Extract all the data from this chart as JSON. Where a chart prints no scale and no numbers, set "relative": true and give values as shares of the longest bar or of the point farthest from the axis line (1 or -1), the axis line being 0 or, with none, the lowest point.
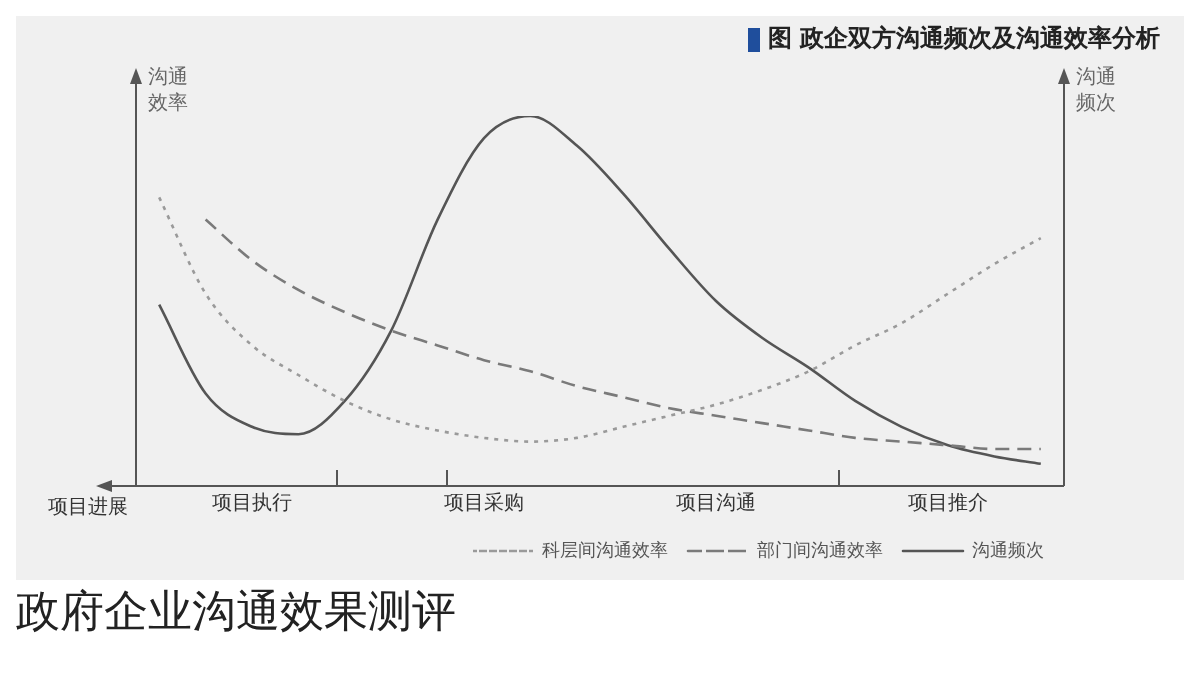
{
  "chart_data": {
    "type": "line",
    "title": "图 政企双方沟通频次及沟通效率分析",
    "xlabel": "项目进展",
    "ylabel": "沟通效率",
    "y2label": "沟通频次",
    "relative": true,
    "categories": [
      null,
      null,
      "项目执行",
      null,
      null,
      null,
      null,
      "项目采购",
      null,
      null,
      null,
      null,
      "项目沟通",
      null,
      null,
      null,
      null,
      "项目推介",
      null,
      null
    ],
    "series": [
      {
        "name": "科层间沟通效率",
        "color": "#9a9a9a",
        "line_style": "dotted",
        "values": [
          0.78,
          0.52,
          0.38,
          0.3,
          0.23,
          0.18,
          0.15,
          0.13,
          0.12,
          0.13,
          0.16,
          0.19,
          0.22,
          0.26,
          0.31,
          0.38,
          0.44,
          0.52,
          0.6,
          0.67
        ]
      },
      {
        "name": "部门间沟通效率",
        "color": "#7a7a7a",
        "line_style": "dashed",
        "values": [
          null,
          0.72,
          0.61,
          0.53,
          0.47,
          0.42,
          0.38,
          0.34,
          0.31,
          0.27,
          0.24,
          0.21,
          0.19,
          0.17,
          0.15,
          0.13,
          0.12,
          0.11,
          0.1,
          0.1
        ]
      },
      {
        "name": "沟通频次",
        "color": "#555555",
        "line_style": "solid",
        "values": [
          0.49,
          0.25,
          0.16,
          0.14,
          0.23,
          0.42,
          0.72,
          0.94,
          1,
          0.92,
          0.79,
          0.64,
          0.5,
          0.4,
          0.32,
          0.23,
          0.16,
          0.11,
          0.08,
          0.06
        ]
      }
    ],
    "legend": "bottom",
    "grid": false,
    "marker": "none",
    "annotations": [
      "政府企业沟通效果测评"
    ]
  }
}
